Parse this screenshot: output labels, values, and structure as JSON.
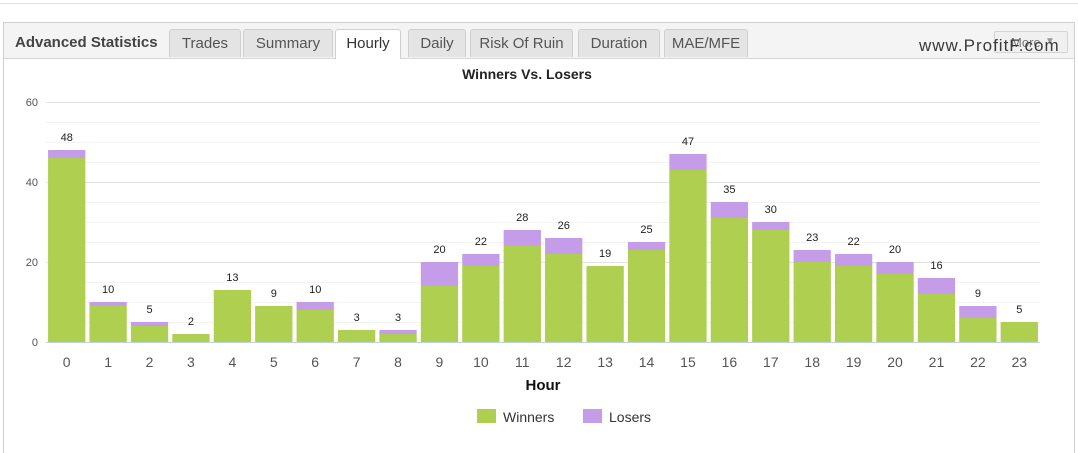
{
  "header": {
    "app_title": "Advanced Statistics",
    "tabs": [
      {
        "label": "Trades",
        "active": false
      },
      {
        "label": "Summary",
        "active": false
      },
      {
        "label": "Hourly",
        "active": true
      },
      {
        "label": "Daily",
        "active": false
      },
      {
        "label": "Risk Of Ruin",
        "active": false
      },
      {
        "label": "Duration",
        "active": false
      },
      {
        "label": "MAE/MFE",
        "active": false
      }
    ],
    "brand": "www.ProfitF.com",
    "more_label": "More",
    "more_icon": "caret-down-icon"
  },
  "colors": {
    "winners": "#aecf4f",
    "losers": "#c49ce8",
    "grid": "#e6e6e6",
    "axis": "#c0d0e0"
  },
  "chart_data": {
    "type": "bar",
    "stacked": true,
    "title": "Winners Vs. Losers",
    "xlabel": "Hour",
    "ylabel": "",
    "ylim": [
      0,
      60
    ],
    "yticks": [
      0,
      20,
      40,
      60
    ],
    "grid": true,
    "legend_position": "bottom-center",
    "categories": [
      "0",
      "1",
      "2",
      "3",
      "4",
      "5",
      "6",
      "7",
      "8",
      "9",
      "10",
      "11",
      "12",
      "13",
      "14",
      "15",
      "16",
      "17",
      "18",
      "19",
      "20",
      "21",
      "22",
      "23"
    ],
    "series": [
      {
        "name": "Winners",
        "values": [
          46,
          9,
          4,
          2,
          13,
          9,
          8,
          3,
          2,
          14,
          19,
          24,
          22,
          19,
          23,
          43,
          31,
          28,
          20,
          19,
          17,
          12,
          6,
          5
        ]
      },
      {
        "name": "Losers",
        "values": [
          2,
          1,
          1,
          0,
          0,
          0,
          2,
          0,
          1,
          6,
          3,
          4,
          4,
          0,
          2,
          4,
          4,
          2,
          3,
          3,
          3,
          4,
          3,
          0
        ]
      }
    ],
    "totals": [
      48,
      10,
      5,
      2,
      13,
      9,
      10,
      3,
      3,
      20,
      22,
      28,
      26,
      19,
      25,
      47,
      35,
      30,
      23,
      22,
      20,
      16,
      9,
      5
    ]
  }
}
